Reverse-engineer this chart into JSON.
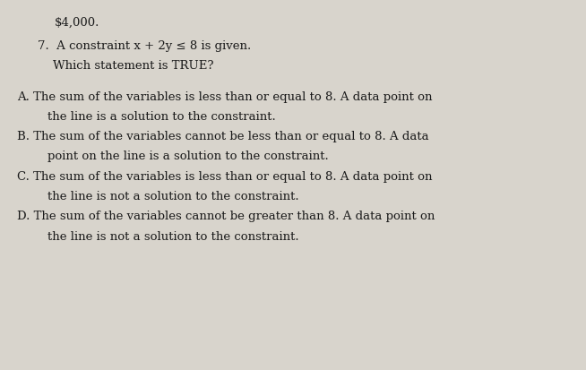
{
  "background_color": "#d8d4cc",
  "paper_color": "#e8e6e0",
  "top_text": "$4,000.",
  "q_line1": "7.  A constraint x + 2y ≤ 8 is given.",
  "q_line2": "    Which statement is TRUE?",
  "opt_A1": "A. The sum of the variables is less than or equal to 8. A data point on",
  "opt_A2": "        the line is a solution to the constraint.",
  "opt_B1": "B. The sum of the variables cannot be less than or equal to 8. A data",
  "opt_B2": "        point on the line is a solution to the constraint.",
  "opt_C1": "C. The sum of the variables is less than or equal to 8. A data point on",
  "opt_C2": "        the line is not a solution to the constraint.",
  "opt_D1": "D. The sum of the variables cannot be greater than 8. A data point on",
  "opt_D2": "        the line is not a solution to the constraint.",
  "font_size": 9.5,
  "font_size_top": 9.5,
  "text_color": "#1a1a1a",
  "font_family": "DejaVu Serif"
}
